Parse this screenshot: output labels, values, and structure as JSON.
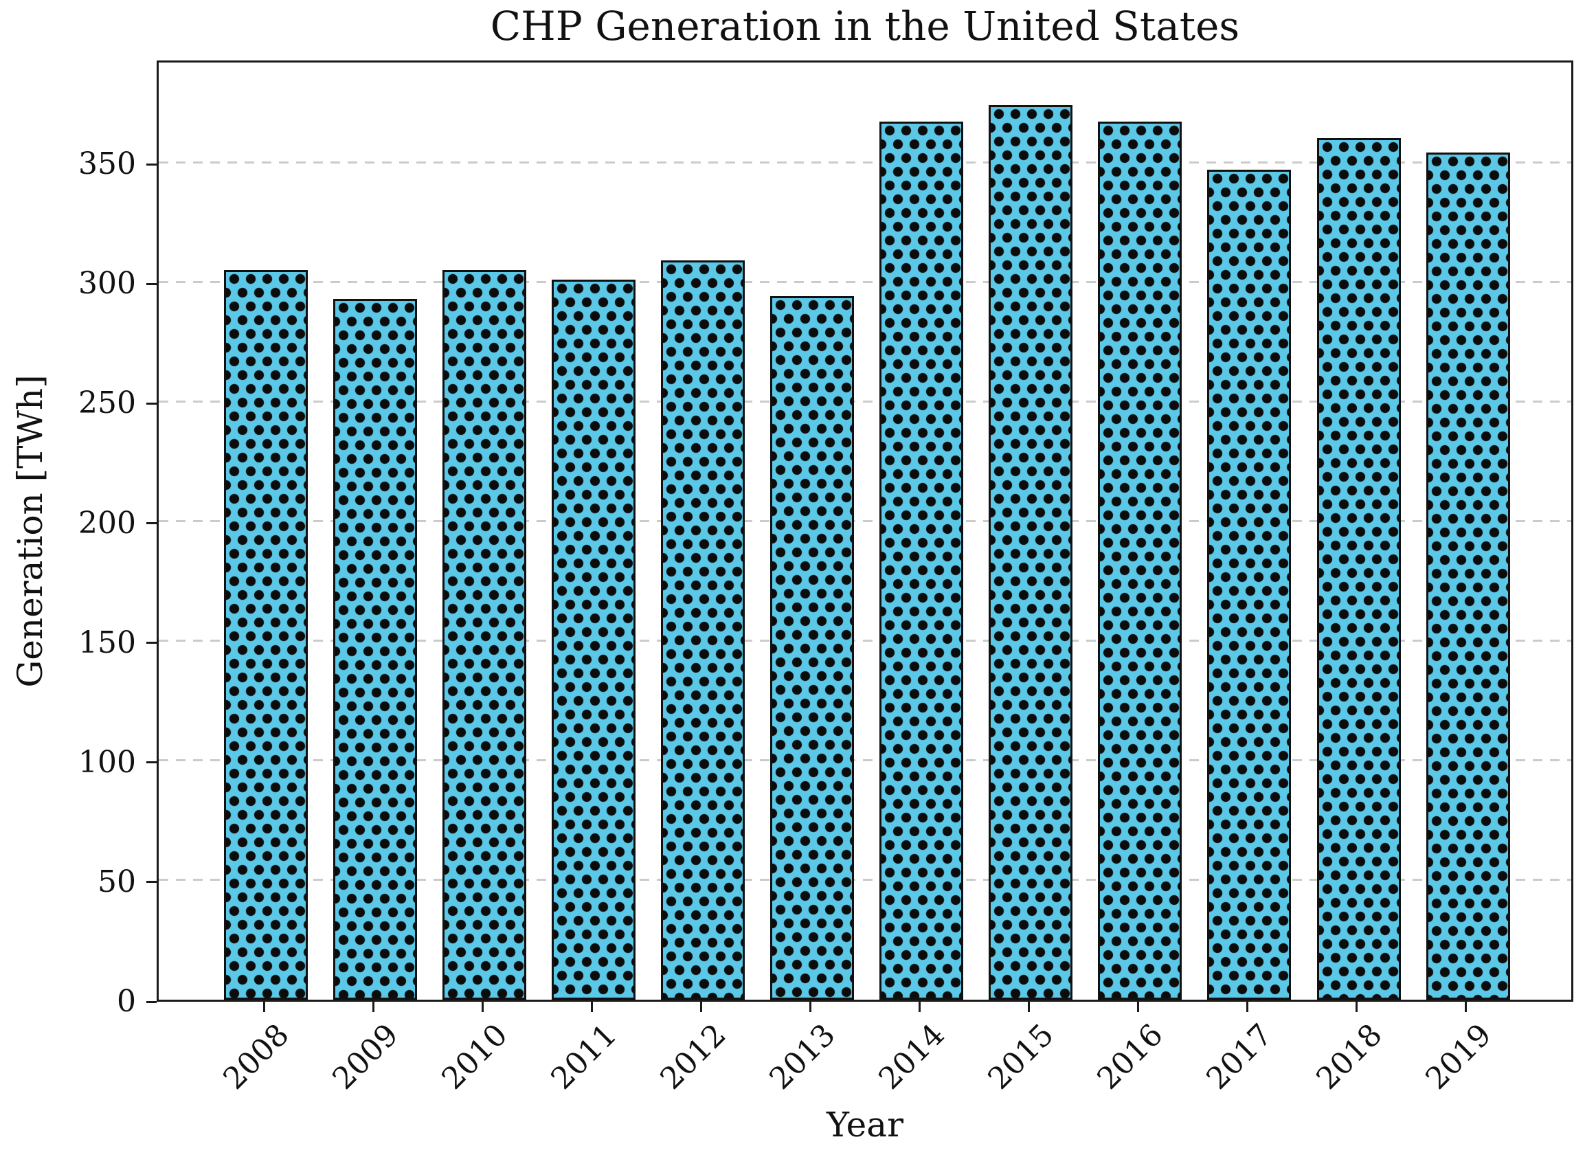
{
  "figure": {
    "background": "#ffffff"
  },
  "chart_data": {
    "type": "bar",
    "title": "CHP Generation in the United States",
    "xlabel": "Year",
    "ylabel": "Generation [TWh]",
    "categories": [
      "2008",
      "2009",
      "2010",
      "2011",
      "2012",
      "2013",
      "2014",
      "2015",
      "2016",
      "2017",
      "2018",
      "2019"
    ],
    "values": [
      305,
      293,
      305,
      301,
      309,
      294,
      367,
      374,
      367,
      347,
      360,
      354
    ],
    "unit": "TWh",
    "ylim": [
      0,
      393
    ],
    "yticks": [
      0,
      50,
      100,
      150,
      200,
      250,
      300,
      350
    ],
    "grid": {
      "axis": "y",
      "style": "dashed",
      "color": "#cbcbcb"
    },
    "legend": "none",
    "style": {
      "bar_fill": "#5BC8E8",
      "bar_edge": "#111111",
      "hatch": "black-dots",
      "spine_color": "#1a1a1a",
      "text_color": "#111111"
    }
  }
}
